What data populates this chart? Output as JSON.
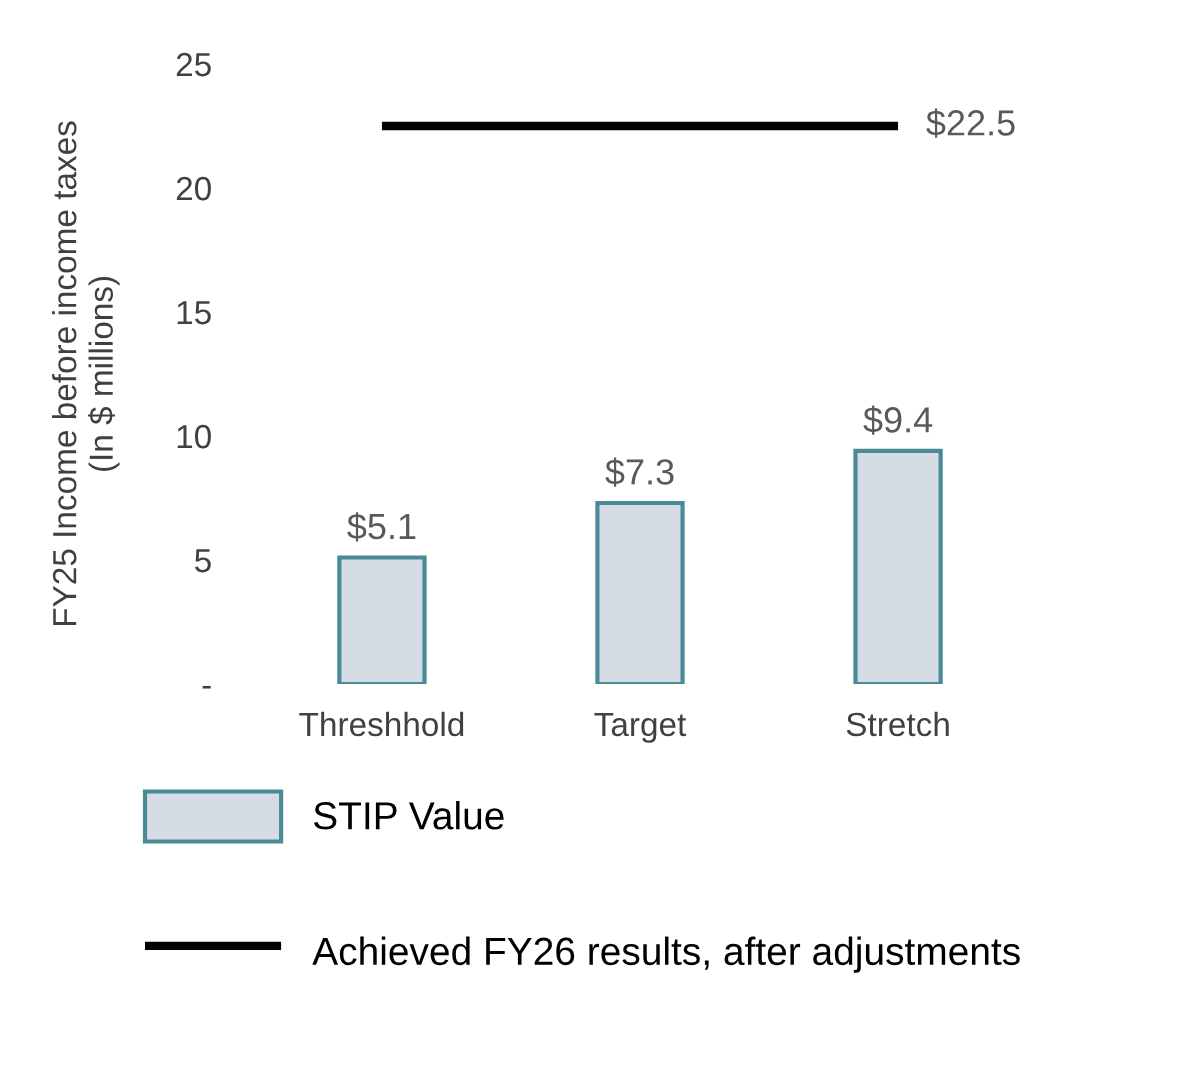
{
  "chart_data": {
    "type": "bar",
    "ylabel": "FY25 Income before income taxes\n(In $ millions)",
    "categories": [
      "Threshhold",
      "Target",
      "Stretch"
    ],
    "series": [
      {
        "name": "STIP Value",
        "color": "#d6dce4",
        "values": [
          5.1,
          7.3,
          9.4
        ],
        "value_labels": [
          "$5.1",
          "$7.3",
          "$9.4"
        ]
      },
      {
        "name": "Achieved FY26 results, after adjustments",
        "type": "line",
        "color": "#000000",
        "values": [
          22.5,
          22.5,
          22.5
        ],
        "value_labels": [
          null,
          null,
          "$22.5"
        ]
      }
    ],
    "ylim": [
      0,
      25
    ],
    "yticks": [
      {
        "value": 0,
        "label": "-"
      },
      5,
      10,
      15,
      20,
      25
    ],
    "grid": false,
    "legend": "bottom"
  }
}
